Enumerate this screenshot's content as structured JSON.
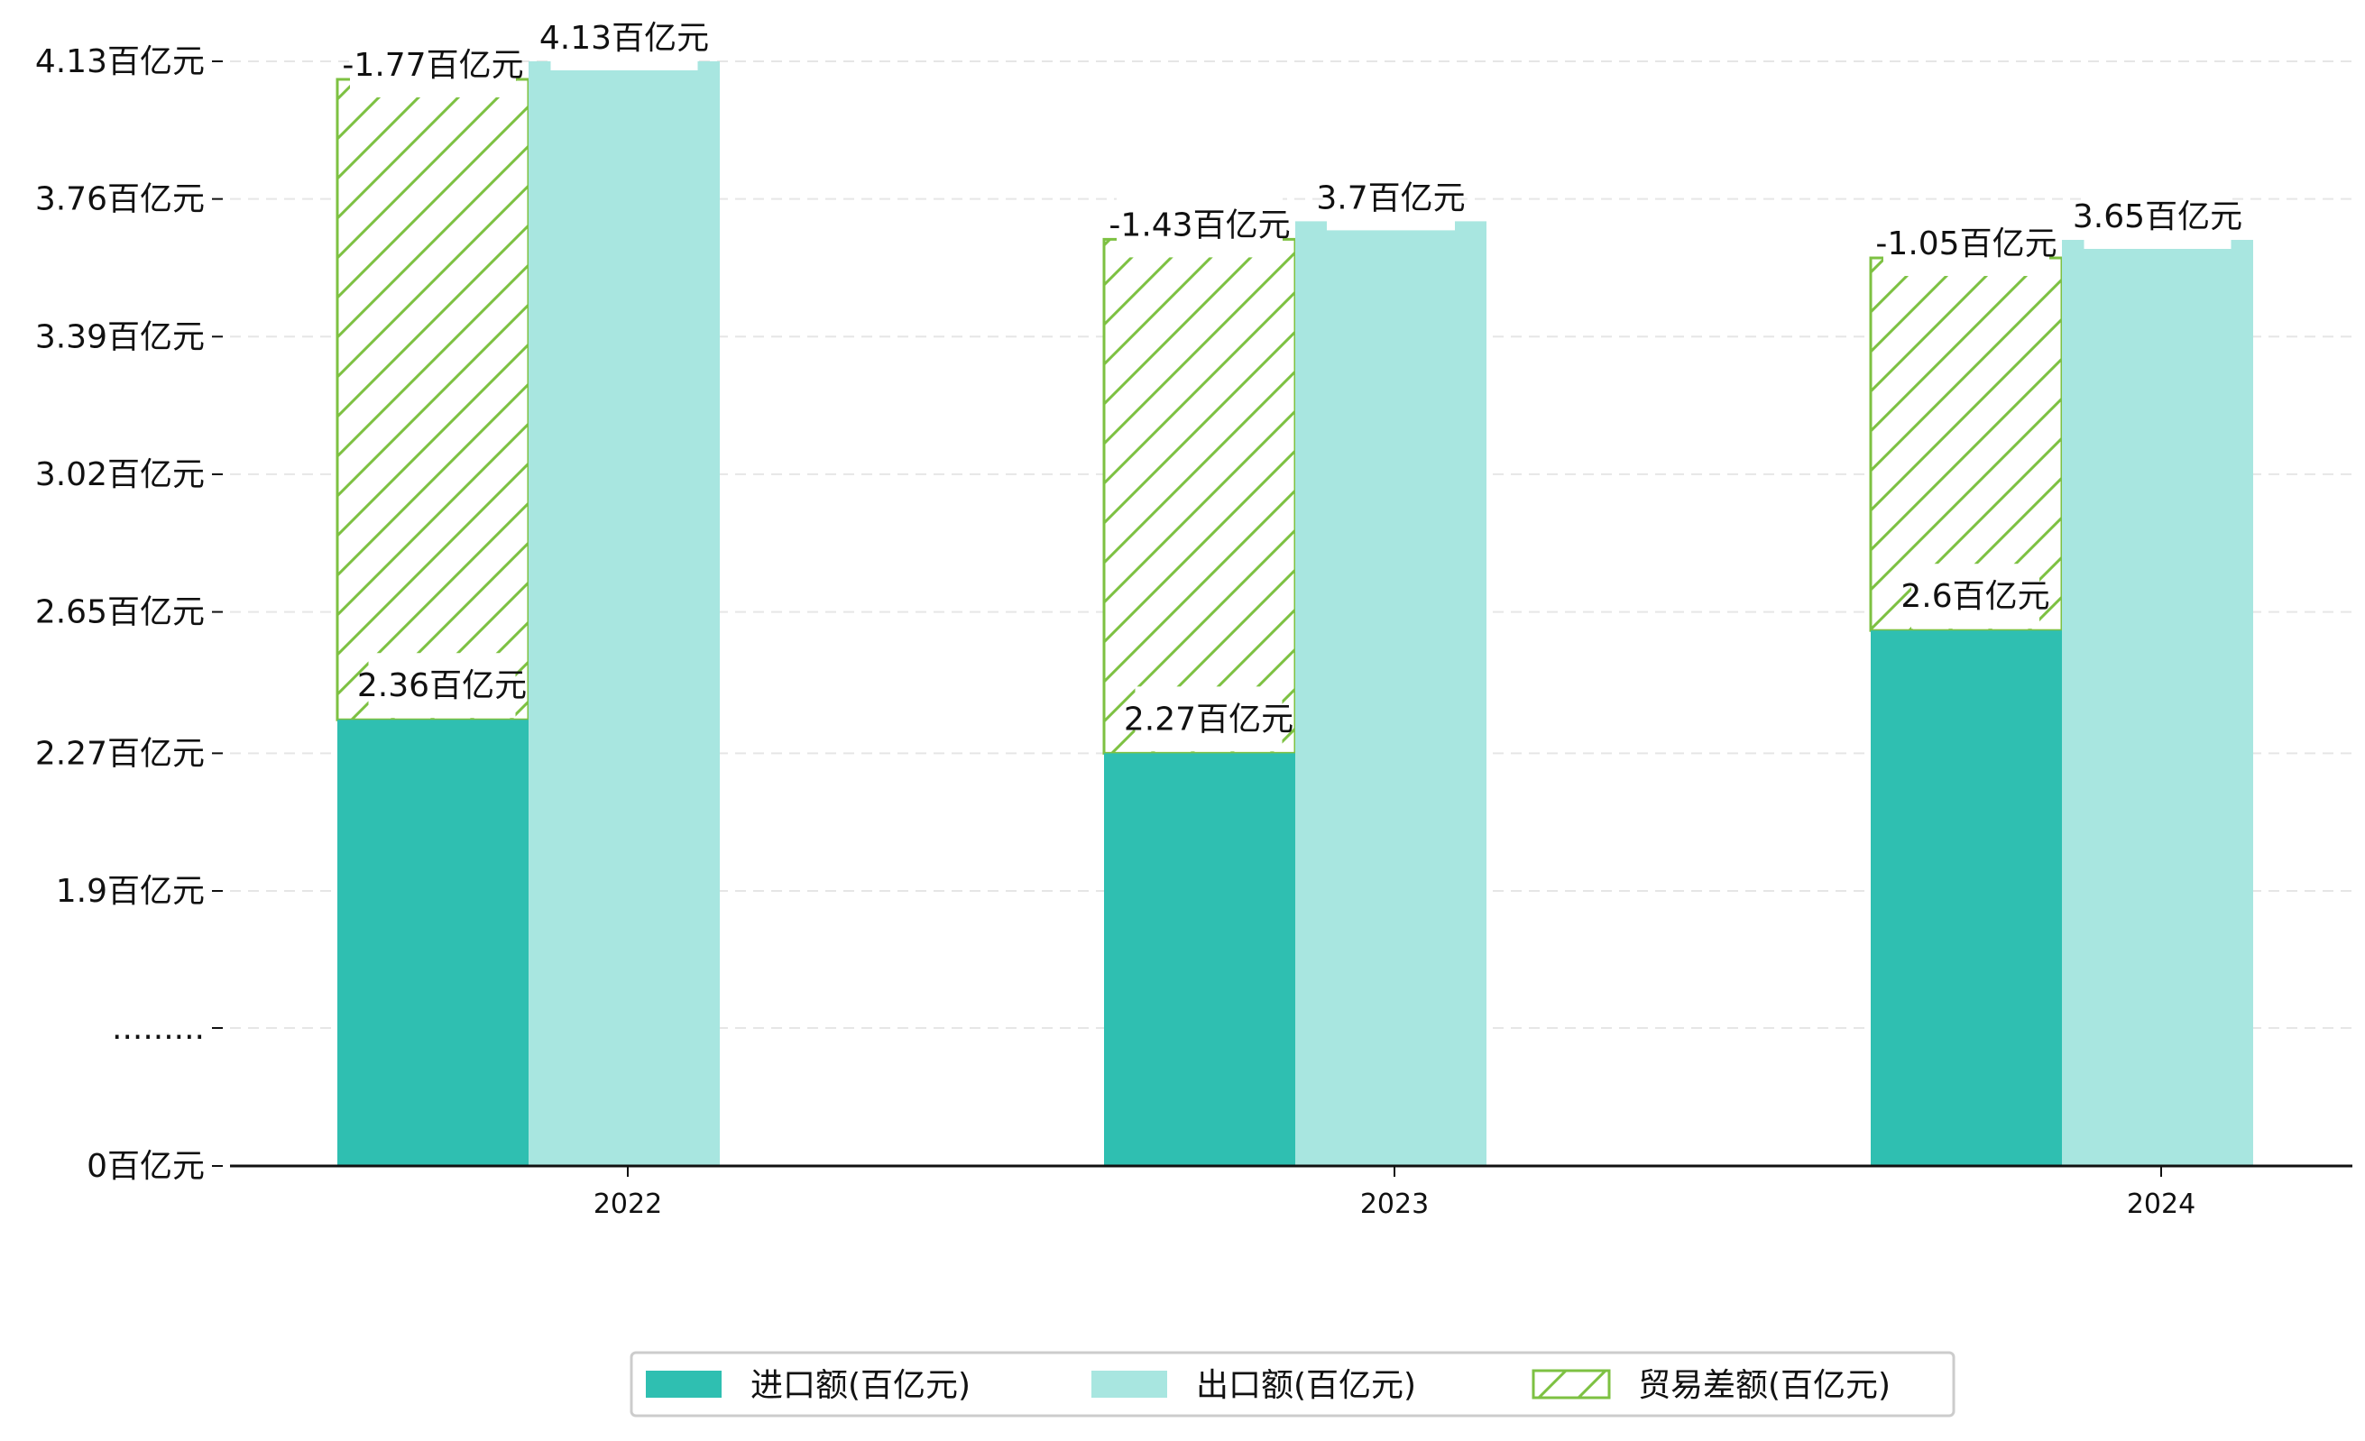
{
  "chart_data": {
    "type": "bar",
    "title": "",
    "xlabel": "",
    "ylabel": "",
    "categories": [
      "2022",
      "2023",
      "2024"
    ],
    "series": [
      {
        "name": "进口额(百亿元)",
        "values": [
          2.36,
          2.27,
          2.6
        ],
        "labels": [
          "2.36百亿元",
          "2.27百亿元",
          "2.6百亿元"
        ],
        "color": "#2fbfb1"
      },
      {
        "name": "出口额(百亿元)",
        "values": [
          4.13,
          3.7,
          3.65
        ],
        "labels": [
          "4.13百亿元",
          "3.7百亿元",
          "3.65百亿元"
        ],
        "color": "#a8e6e0"
      },
      {
        "name": "贸易差额(百亿元)",
        "values": [
          -1.77,
          -1.43,
          -1.05
        ],
        "labels": [
          "-1.77百亿元",
          "-1.43百亿元",
          "-1.05百亿元"
        ],
        "color": "#7dc142",
        "style": "hatched, stacked on import"
      }
    ],
    "yticks": [
      {
        "label": "0百亿元",
        "value": 0
      },
      {
        "label": ".........",
        "value": 0.5
      },
      {
        "label": "1.9百亿元",
        "value": 1.9
      },
      {
        "label": "2.27百亿元",
        "value": 2.27
      },
      {
        "label": "2.65百亿元",
        "value": 2.65
      },
      {
        "label": "3.02百亿元",
        "value": 3.02
      },
      {
        "label": "3.39百亿元",
        "value": 3.39
      },
      {
        "label": "3.76百亿元",
        "value": 3.76
      },
      {
        "label": "4.13百亿元",
        "value": 4.13
      }
    ],
    "y_axis_break": "between 0 and 1.9",
    "grid": "horizontal dashed",
    "legend_position": "bottom-center"
  }
}
